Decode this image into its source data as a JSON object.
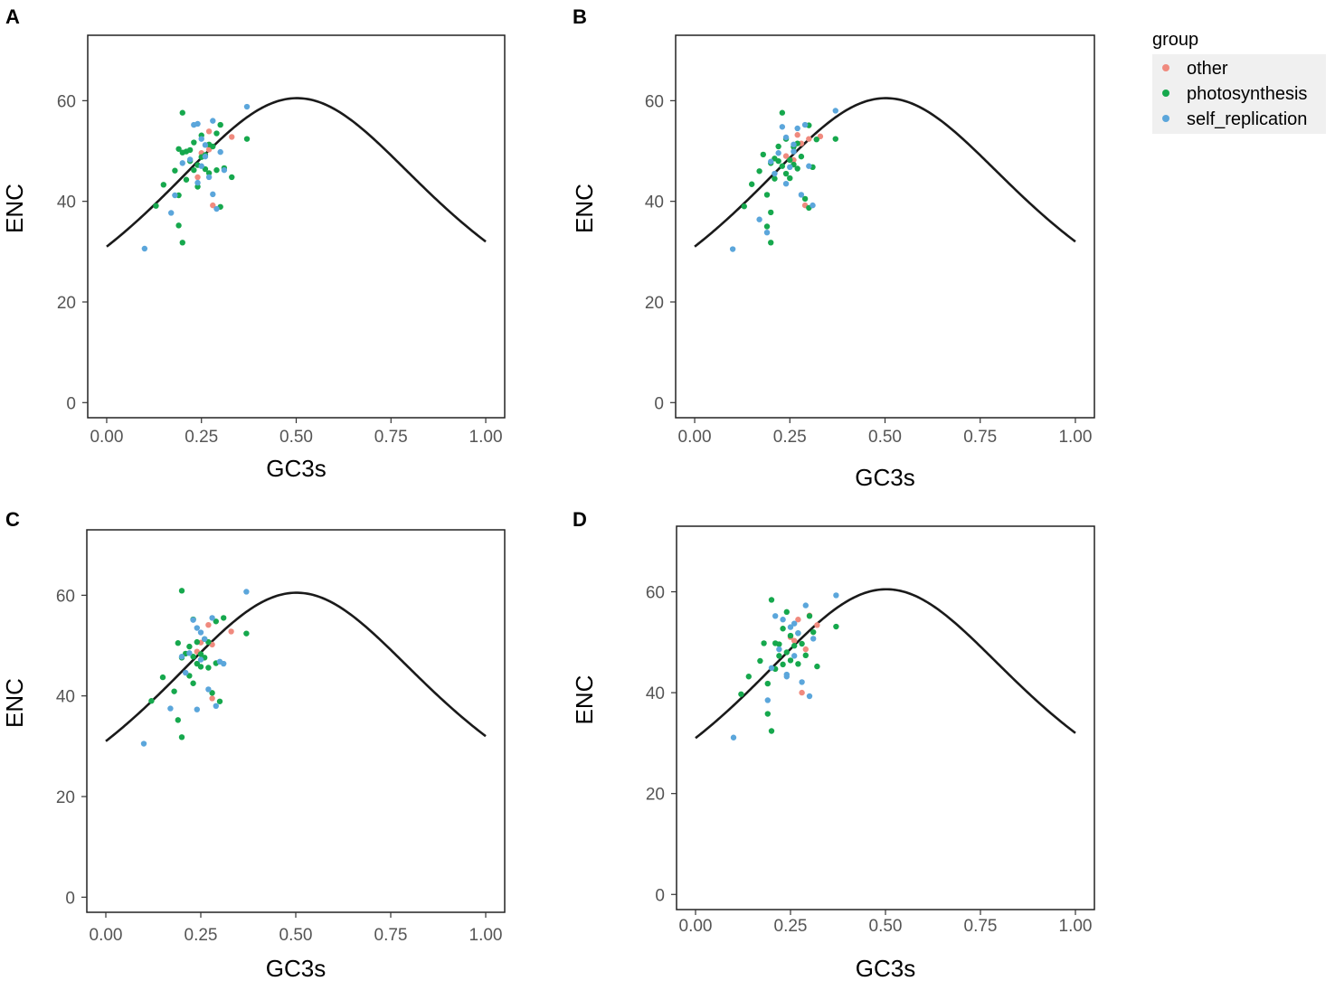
{
  "legend": {
    "title": "group",
    "entries": [
      {
        "label": "other",
        "color": "#F08A7E"
      },
      {
        "label": "photosynthesis",
        "color": "#16A84D"
      },
      {
        "label": "self_replication",
        "color": "#5BA6DB"
      }
    ]
  },
  "chart_data": [
    {
      "panel_label": "A",
      "type": "scatter",
      "xlabel": "GC3s",
      "ylabel": "ENC",
      "xlim": [
        -0.05,
        1.05
      ],
      "ylim": [
        -3,
        73
      ],
      "xticks": [
        "0.00",
        "0.25",
        "0.50",
        "0.75",
        "1.00"
      ],
      "yticks": [
        "0",
        "20",
        "40",
        "60"
      ],
      "expected_curve": "ENC = 2 + GC3s + 29 / (GC3s^2 + (1 - GC3s)^2)",
      "series": [
        {
          "name": "other",
          "x": [
            0.25,
            0.27,
            0.27,
            0.28,
            0.33,
            0.24
          ],
          "y": [
            49.6,
            53.9,
            50.3,
            39.2,
            52.8,
            44.8
          ]
        },
        {
          "name": "photosynthesis",
          "x": [
            0.13,
            0.15,
            0.18,
            0.19,
            0.19,
            0.2,
            0.2,
            0.21,
            0.21,
            0.22,
            0.22,
            0.23,
            0.23,
            0.24,
            0.24,
            0.25,
            0.25,
            0.26,
            0.26,
            0.27,
            0.27,
            0.28,
            0.29,
            0.29,
            0.3,
            0.3,
            0.31,
            0.33,
            0.37,
            0.2,
            0.19
          ],
          "y": [
            39.1,
            43.3,
            46.1,
            50.4,
            41.2,
            57.6,
            31.8,
            49.9,
            44.3,
            48.0,
            50.2,
            46.2,
            51.7,
            47.2,
            42.9,
            48.8,
            53.1,
            46.4,
            49.2,
            45.6,
            51.3,
            50.9,
            46.2,
            53.5,
            38.9,
            55.2,
            46.6,
            44.8,
            52.4,
            49.7,
            35.2
          ]
        },
        {
          "name": "self_replication",
          "x": [
            0.1,
            0.17,
            0.18,
            0.2,
            0.22,
            0.23,
            0.24,
            0.25,
            0.25,
            0.26,
            0.27,
            0.28,
            0.28,
            0.29,
            0.3,
            0.31,
            0.37,
            0.24,
            0.26
          ],
          "y": [
            30.6,
            37.7,
            41.2,
            47.6,
            48.3,
            55.2,
            43.7,
            52.4,
            47.0,
            51.2,
            44.8,
            56.0,
            41.4,
            38.5,
            49.8,
            46.2,
            58.8,
            55.4,
            48.9
          ]
        }
      ]
    },
    {
      "panel_label": "B",
      "type": "scatter",
      "xlabel": "GC3s",
      "ylabel": "ENC",
      "xlim": [
        -0.05,
        1.05
      ],
      "ylim": [
        -3,
        73
      ],
      "xticks": [
        "0.00",
        "0.25",
        "0.50",
        "0.75",
        "1.00"
      ],
      "yticks": [
        "0",
        "20",
        "40",
        "60"
      ],
      "expected_curve": "ENC = 2 + GC3s + 29 / (GC3s^2 + (1 - GC3s)^2)",
      "series": [
        {
          "name": "other",
          "x": [
            0.24,
            0.26,
            0.27,
            0.29,
            0.3,
            0.33,
            0.28
          ],
          "y": [
            49.0,
            48.2,
            53.2,
            39.2,
            52.4,
            52.9,
            51.5
          ]
        },
        {
          "name": "photosynthesis",
          "x": [
            0.13,
            0.15,
            0.17,
            0.18,
            0.19,
            0.2,
            0.2,
            0.21,
            0.21,
            0.22,
            0.22,
            0.23,
            0.23,
            0.24,
            0.24,
            0.25,
            0.25,
            0.26,
            0.26,
            0.27,
            0.27,
            0.28,
            0.29,
            0.3,
            0.3,
            0.31,
            0.32,
            0.37,
            0.2,
            0.19
          ],
          "y": [
            39.0,
            43.4,
            46.0,
            49.3,
            41.3,
            47.6,
            31.8,
            48.5,
            44.5,
            48.0,
            50.9,
            47.0,
            57.6,
            45.5,
            52.4,
            48.2,
            44.6,
            50.8,
            47.3,
            46.5,
            51.5,
            48.9,
            40.5,
            38.7,
            55.1,
            46.8,
            52.3,
            52.4,
            37.8,
            35.0
          ]
        },
        {
          "name": "self_replication",
          "x": [
            0.1,
            0.17,
            0.19,
            0.2,
            0.21,
            0.23,
            0.24,
            0.24,
            0.25,
            0.26,
            0.27,
            0.28,
            0.29,
            0.3,
            0.31,
            0.37,
            0.22,
            0.26
          ],
          "y": [
            30.5,
            36.4,
            33.8,
            47.9,
            45.5,
            54.8,
            43.5,
            52.7,
            46.8,
            51.3,
            54.5,
            41.3,
            55.2,
            47.0,
            39.2,
            58.0,
            49.6,
            49.9
          ]
        }
      ]
    },
    {
      "panel_label": "C",
      "type": "scatter",
      "xlabel": "GC3s",
      "ylabel": "ENC",
      "xlim": [
        -0.05,
        1.05
      ],
      "ylim": [
        -3,
        73
      ],
      "xticks": [
        "0.00",
        "0.25",
        "0.50",
        "0.75",
        "1.00"
      ],
      "yticks": [
        "0",
        "20",
        "40",
        "60"
      ],
      "expected_curve": "ENC = 2 + GC3s + 29 / (GC3s^2 + (1 - GC3s)^2)",
      "series": [
        {
          "name": "other",
          "x": [
            0.25,
            0.27,
            0.28,
            0.33,
            0.24,
            0.28
          ],
          "y": [
            50.6,
            54.1,
            39.5,
            52.8,
            48.8,
            50.2
          ]
        },
        {
          "name": "photosynthesis",
          "x": [
            0.12,
            0.15,
            0.18,
            0.19,
            0.2,
            0.2,
            0.21,
            0.22,
            0.22,
            0.23,
            0.23,
            0.24,
            0.24,
            0.25,
            0.25,
            0.26,
            0.26,
            0.27,
            0.27,
            0.28,
            0.29,
            0.29,
            0.3,
            0.31,
            0.37,
            0.2,
            0.19,
            0.23
          ],
          "y": [
            39.0,
            43.7,
            40.9,
            50.5,
            60.9,
            31.8,
            48.4,
            49.8,
            44.0,
            47.8,
            55.2,
            46.4,
            50.7,
            48.3,
            45.8,
            47.6,
            51.3,
            45.6,
            50.7,
            40.6,
            54.8,
            46.5,
            38.9,
            55.5,
            52.4,
            47.6,
            35.2,
            42.5
          ]
        },
        {
          "name": "self_replication",
          "x": [
            0.1,
            0.17,
            0.21,
            0.22,
            0.23,
            0.24,
            0.25,
            0.25,
            0.26,
            0.27,
            0.28,
            0.29,
            0.3,
            0.31,
            0.37,
            0.2,
            0.24
          ],
          "y": [
            30.5,
            37.5,
            44.6,
            48.5,
            55.1,
            37.3,
            52.6,
            47.2,
            51.3,
            41.3,
            55.5,
            38.0,
            46.8,
            46.4,
            60.7,
            47.8,
            53.5
          ]
        }
      ]
    },
    {
      "panel_label": "D",
      "type": "scatter",
      "xlabel": "GC3s",
      "ylabel": "ENC",
      "xlim": [
        -0.05,
        1.05
      ],
      "ylim": [
        -3,
        73
      ],
      "xticks": [
        "0.00",
        "0.25",
        "0.50",
        "0.75",
        "1.00"
      ],
      "yticks": [
        "0",
        "20",
        "40",
        "60"
      ],
      "expected_curve": "ENC = 2 + GC3s + 29 / (GC3s^2 + (1 - GC3s)^2)",
      "series": [
        {
          "name": "other",
          "x": [
            0.25,
            0.27,
            0.28,
            0.3,
            0.32,
            0.29,
            0.26
          ],
          "y": [
            51.0,
            54.5,
            40.0,
            55.3,
            53.4,
            48.6,
            50.3
          ]
        },
        {
          "name": "photosynthesis",
          "x": [
            0.12,
            0.14,
            0.17,
            0.18,
            0.19,
            0.2,
            0.2,
            0.21,
            0.21,
            0.22,
            0.23,
            0.23,
            0.24,
            0.24,
            0.25,
            0.25,
            0.26,
            0.27,
            0.27,
            0.28,
            0.29,
            0.3,
            0.31,
            0.32,
            0.37,
            0.19,
            0.22
          ],
          "y": [
            39.7,
            43.2,
            46.3,
            49.8,
            41.8,
            58.4,
            32.4,
            49.8,
            44.7,
            47.3,
            52.7,
            45.6,
            56.0,
            48.0,
            51.3,
            46.4,
            49.3,
            45.7,
            51.8,
            49.7,
            47.4,
            55.2,
            52.0,
            45.2,
            53.1,
            35.8,
            49.6
          ]
        },
        {
          "name": "self_replication",
          "x": [
            0.1,
            0.19,
            0.2,
            0.21,
            0.22,
            0.23,
            0.24,
            0.25,
            0.26,
            0.27,
            0.28,
            0.29,
            0.3,
            0.31,
            0.37,
            0.24,
            0.26
          ],
          "y": [
            31.1,
            38.5,
            44.9,
            55.2,
            48.6,
            54.5,
            43.6,
            53.0,
            47.3,
            51.8,
            42.1,
            57.3,
            39.3,
            50.7,
            59.3,
            43.2,
            53.7
          ]
        }
      ]
    }
  ]
}
